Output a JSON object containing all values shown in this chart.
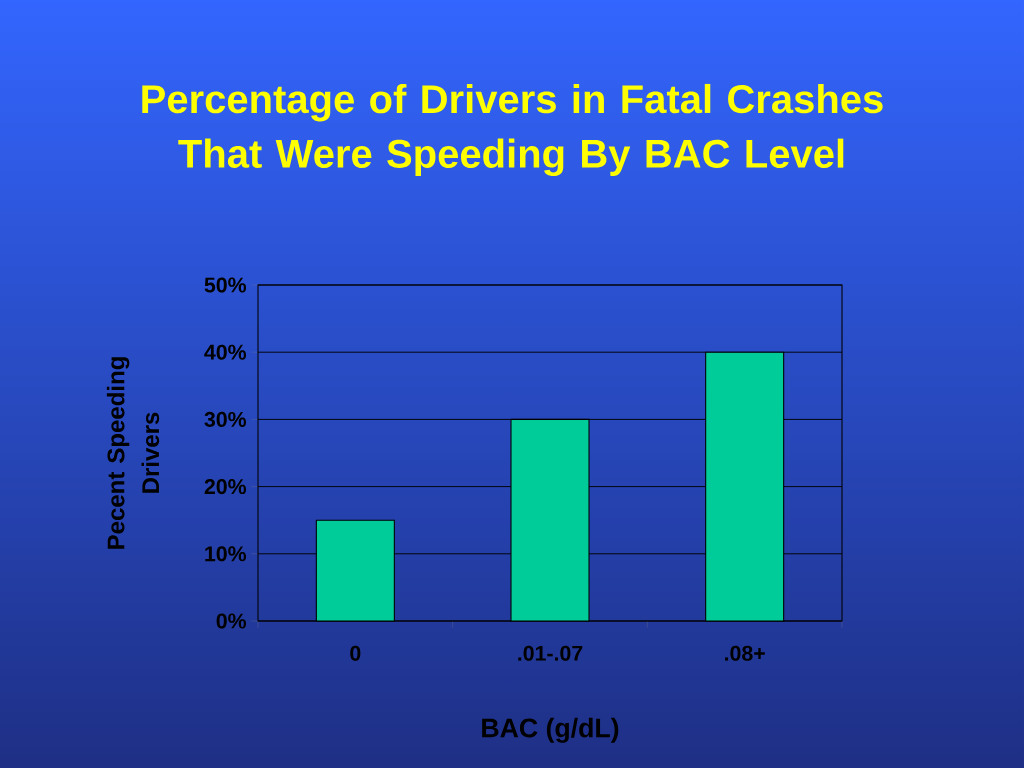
{
  "chart_data": {
    "type": "bar",
    "title": "Percentage of Drivers in Fatal Crashes That Were Speeding By BAC Level",
    "xlabel": "BAC (g/dL)",
    "ylabel": "Pecent Speeding Drivers",
    "categories": [
      "0",
      ".01-.07",
      ".08+"
    ],
    "values": [
      15,
      30,
      40
    ],
    "color": "#00cc99",
    "ylim": [
      0,
      50
    ],
    "yticks": [
      {
        "value": 0,
        "label": "0%"
      },
      {
        "value": 10,
        "label": "10%"
      },
      {
        "value": 20,
        "label": "20%"
      },
      {
        "value": 30,
        "label": "30%"
      },
      {
        "value": 40,
        "label": "40%"
      },
      {
        "value": 50,
        "label": "50%"
      }
    ],
    "grid": "y"
  }
}
